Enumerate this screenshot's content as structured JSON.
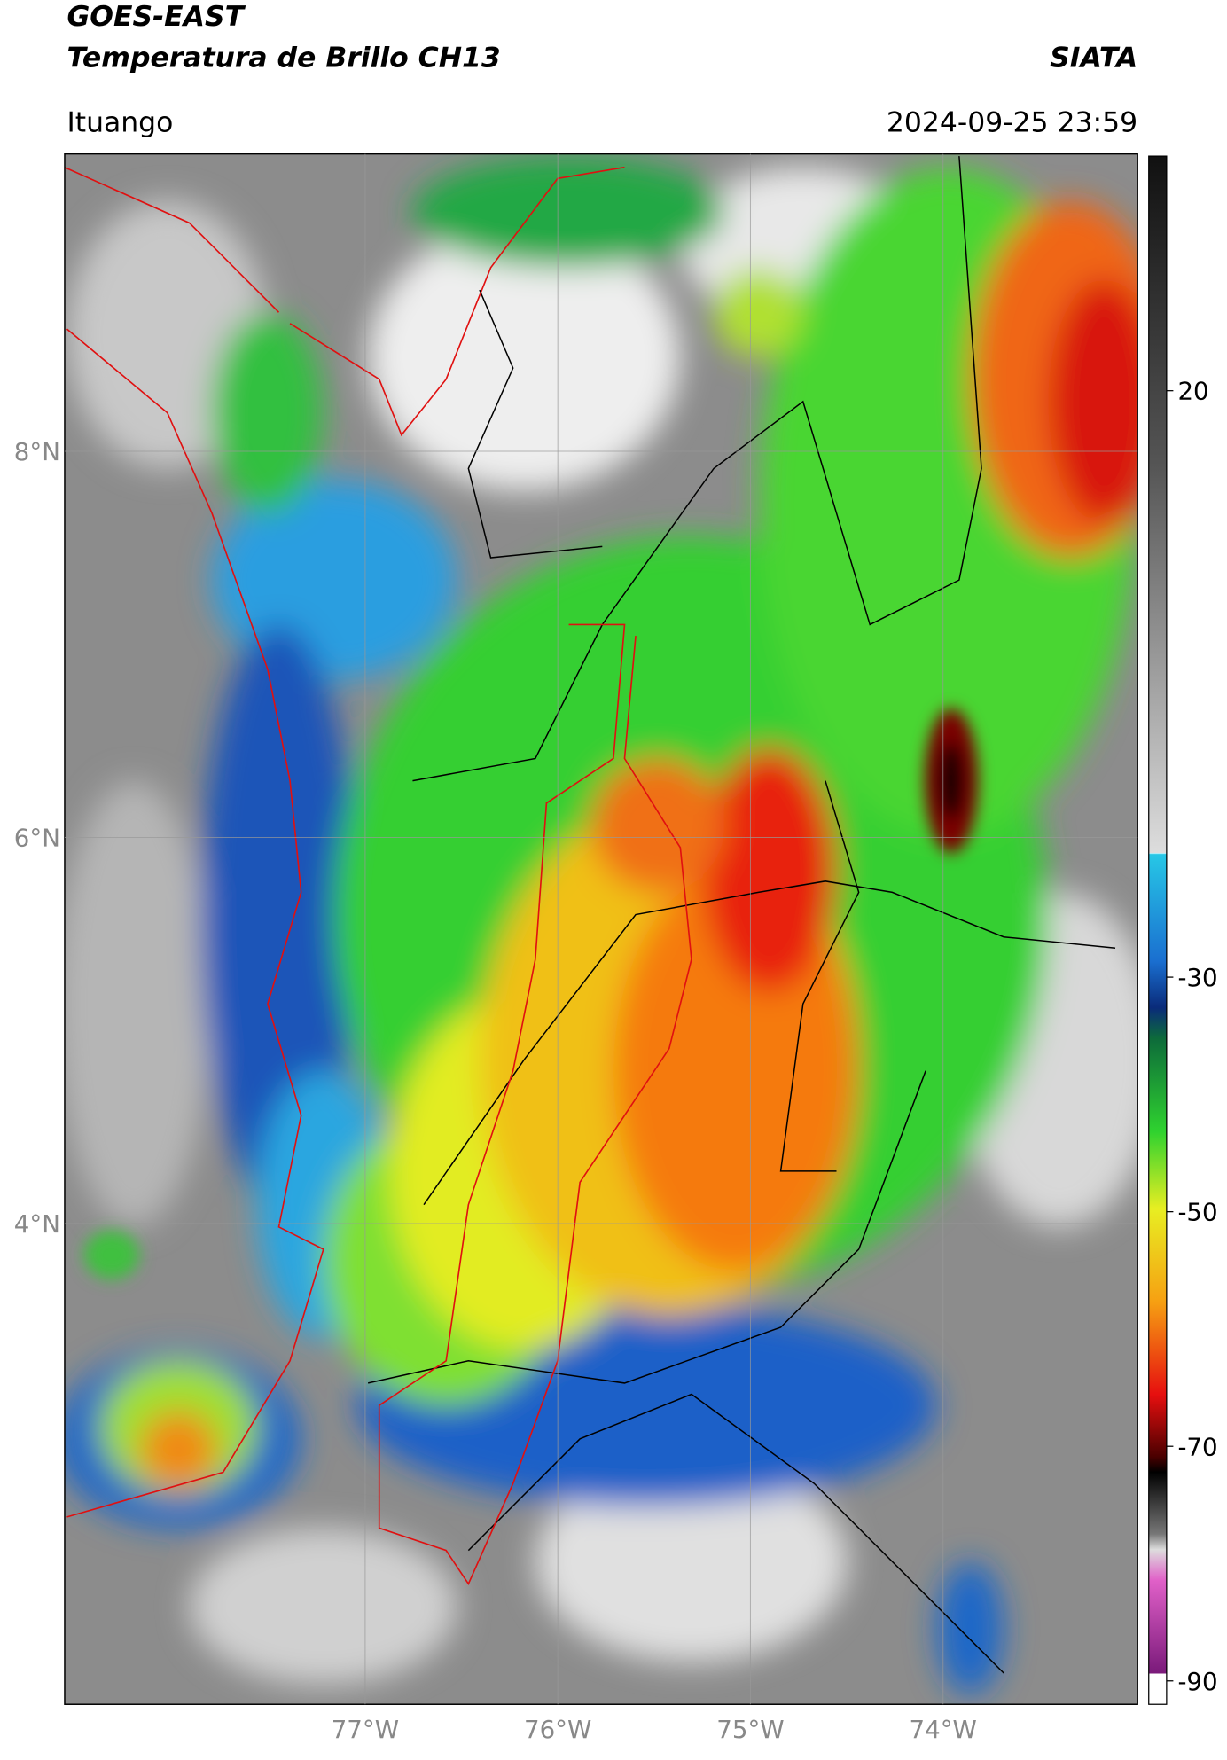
{
  "header": {
    "title_line1": "GOES-EAST",
    "title_line2": "Temperatura de Brillo CH13",
    "org": "SIATA",
    "location": "Ituango",
    "datetime": "2024-09-25 23:59"
  },
  "map": {
    "lat_lim": [
      1.51,
      9.54
    ],
    "lon_lim": [
      -78.56,
      -72.99
    ],
    "lat_ticks": [
      {
        "value": 8,
        "label": "8°N"
      },
      {
        "value": 6,
        "label": "6°N"
      },
      {
        "value": 4,
        "label": "4°N"
      }
    ],
    "lon_ticks": [
      {
        "value": -77,
        "label": "77°W"
      },
      {
        "value": -76,
        "label": "76°W"
      },
      {
        "value": -75,
        "label": "75°W"
      },
      {
        "value": -74,
        "label": "74°W"
      }
    ]
  },
  "colorbar": {
    "range": [
      -92,
      40
    ],
    "ticks": [
      20,
      -30,
      -50,
      -70,
      -90
    ]
  }
}
